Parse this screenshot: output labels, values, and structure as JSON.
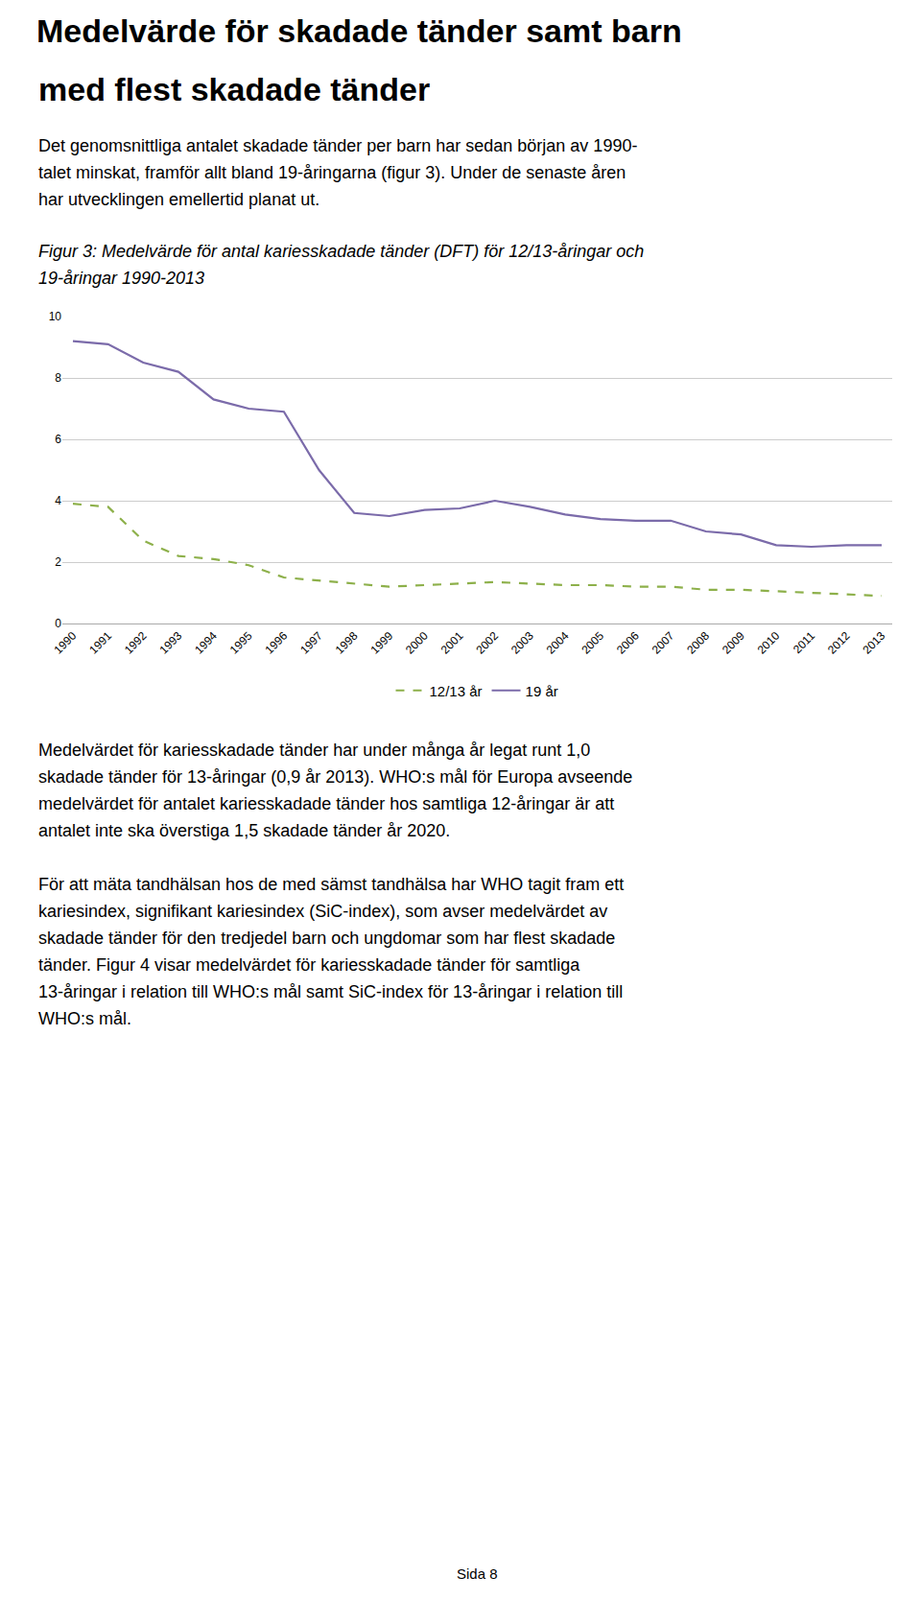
{
  "chart_data": {
    "type": "line",
    "title": "Medelvärde för skadade tänder samt barn",
    "subtitle": "med flest skadade tänder",
    "x": [
      1990,
      1991,
      1992,
      1993,
      1994,
      1995,
      1996,
      1997,
      1998,
      1999,
      2000,
      2001,
      2002,
      2003,
      2004,
      2005,
      2006,
      2007,
      2008,
      2009,
      2010,
      2011,
      2012,
      2013
    ],
    "series": [
      {
        "name": "19 år",
        "color": "#7b6baa",
        "line_style": "solid",
        "values": [
          9.2,
          9.1,
          8.5,
          8.2,
          7.3,
          7.0,
          6.9,
          5.0,
          3.6,
          3.5,
          3.7,
          3.75,
          4.0,
          3.8,
          3.55,
          3.4,
          3.35,
          3.35,
          3.0,
          2.9,
          2.55,
          2.5,
          2.55,
          2.55
        ]
      },
      {
        "name": "12/13 år",
        "color": "#8db04a",
        "line_style": "dashed",
        "values": [
          3.9,
          3.8,
          2.7,
          2.2,
          2.1,
          1.9,
          1.5,
          1.4,
          1.3,
          1.2,
          1.25,
          1.3,
          1.35,
          1.3,
          1.25,
          1.25,
          1.2,
          1.2,
          1.1,
          1.1,
          1.05,
          1.0,
          0.95,
          0.9
        ]
      }
    ],
    "xlim": [
      1989.7,
      2013.3
    ],
    "xticks": [
      1990,
      1991,
      1992,
      1993,
      1994,
      1995,
      1996,
      1997,
      1998,
      1999,
      2000,
      2001,
      2002,
      2003,
      2004,
      2005,
      2006,
      2007,
      2008,
      2009,
      2010,
      2011,
      2012,
      2013
    ],
    "ylim": [
      0,
      10
    ],
    "yticks": [
      0,
      2,
      4,
      6,
      8,
      10
    ],
    "grid": "y",
    "legend": "bottom",
    "annotations": [
      "Det genomsnittliga antalet skadade tänder per barn har sedan början av 1990-",
      "talet minskat, framför allt bland 19-åringarna (figur 3). Under de senaste åren",
      "har utvecklingen emellertid planat ut.",
      "Figur 3: Medelvärde för antal kariesskadade tänder (DFT) för 12/13-åringar och",
      "19-åringar 1990-2013",
      "Medelvärdet för kariesskadade tänder har under många år legat runt 1,0",
      "skadade tänder för 13-åringar (0,9 år 2013). WHO:s mål för Europa avseende",
      "medelvärdet för antalet kariesskadade tänder hos samtliga 12-åringar är att",
      "antalet inte ska överstiga 1,5 skadade tänder år 2020.",
      "För att mäta tandhälsan hos de med sämst tandhälsa har WHO tagit fram ett",
      "kariesindex, signifikant kariesindex (SiC-index), som avser medelvärdet av",
      "skadade tänder för den tredjedel barn och ungdomar som har flest skadade",
      "tänder. Figur 4 visar medelvärdet för kariesskadade tänder för samtliga",
      "13-åringar i relation till WHO:s mål samt SiC-index för 13-åringar i relation till",
      "WHO:s mål.",
      "Sida 8"
    ]
  }
}
